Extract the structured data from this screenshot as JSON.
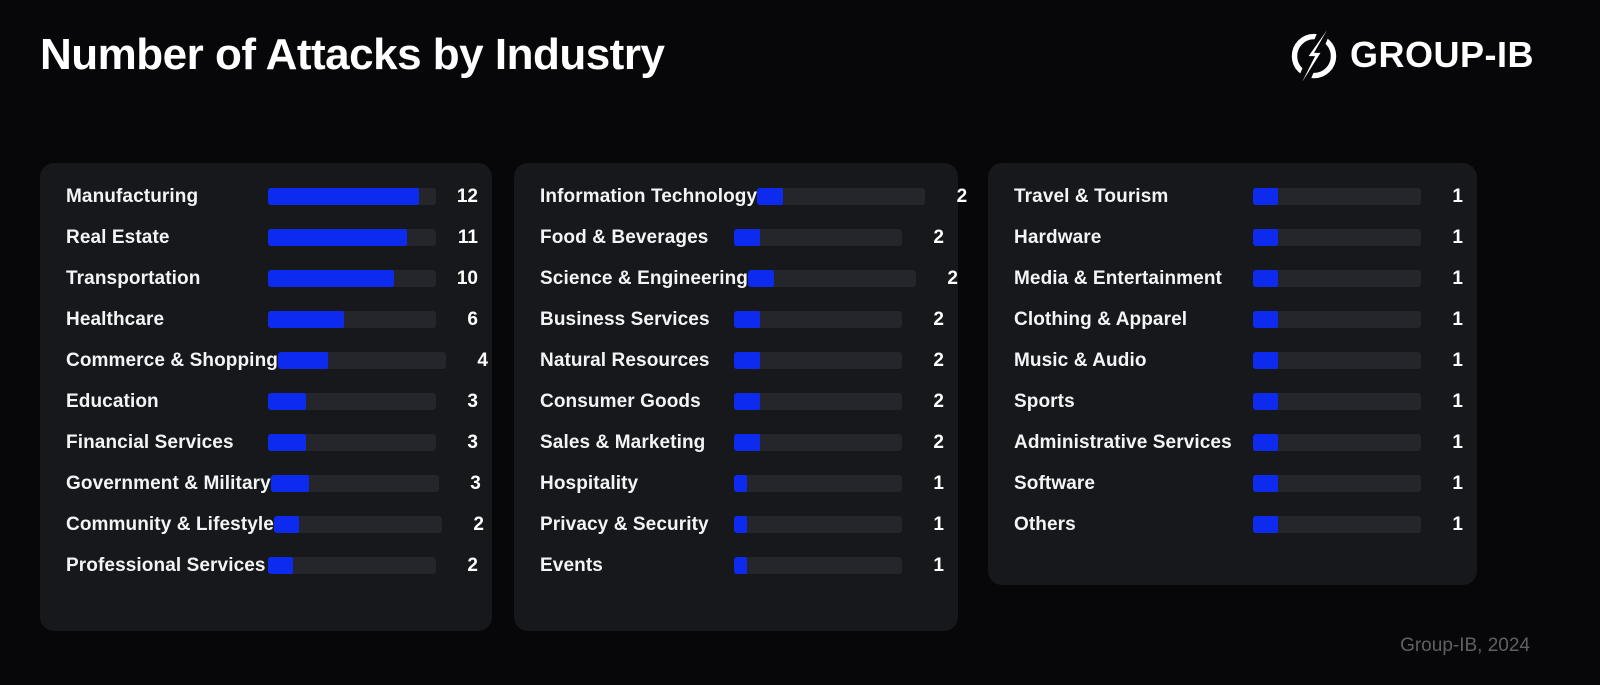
{
  "header": {
    "title": "Number of Attacks by Industry",
    "brand": "GROUP-IB"
  },
  "footer": {
    "credit": "Group-IB, 2024"
  },
  "colors": {
    "page_bg": "#070709",
    "panel_bg": "#17181C",
    "track": "#25262B",
    "accent": "#0C2BEF",
    "text": "#F3F4F5",
    "muted_text": "#5E6065"
  },
  "chart_data": {
    "type": "bar",
    "orientation": "horizontal",
    "title": "Number of Attacks by Industry",
    "xlabel": "",
    "ylabel": "",
    "legend": "none",
    "grid": false,
    "value_label_position": "right",
    "panels": [
      {
        "name": "panel-1",
        "unit_pct": 7.5,
        "items": [
          {
            "label": "Manufacturing",
            "value": 12
          },
          {
            "label": "Real Estate",
            "value": 11
          },
          {
            "label": "Transportation",
            "value": 10
          },
          {
            "label": "Healthcare",
            "value": 6
          },
          {
            "label": "Commerce & Shopping",
            "value": 4
          },
          {
            "label": "Education",
            "value": 3
          },
          {
            "label": "Financial Services",
            "value": 3
          },
          {
            "label": "Government & Military",
            "value": 3
          },
          {
            "label": "Community & Lifestyle",
            "value": 2
          },
          {
            "label": "Professional Services",
            "value": 2
          }
        ]
      },
      {
        "name": "panel-2",
        "unit_pct": 7.7,
        "items": [
          {
            "label": "Information Technology",
            "value": 2
          },
          {
            "label": "Food & Beverages",
            "value": 2
          },
          {
            "label": "Science & Engineering",
            "value": 2
          },
          {
            "label": "Business Services",
            "value": 2
          },
          {
            "label": "Natural Resources",
            "value": 2
          },
          {
            "label": "Consumer Goods",
            "value": 2
          },
          {
            "label": "Sales & Marketing",
            "value": 2
          },
          {
            "label": "Hospitality",
            "value": 1
          },
          {
            "label": "Privacy & Security",
            "value": 1
          },
          {
            "label": "Events",
            "value": 1
          }
        ]
      },
      {
        "name": "panel-3",
        "unit_pct": 14.6,
        "items": [
          {
            "label": "Travel & Tourism",
            "value": 1
          },
          {
            "label": "Hardware",
            "value": 1
          },
          {
            "label": "Media & Entertainment",
            "value": 1
          },
          {
            "label": "Clothing & Apparel",
            "value": 1
          },
          {
            "label": "Music & Audio",
            "value": 1
          },
          {
            "label": "Sports",
            "value": 1
          },
          {
            "label": "Administrative Services",
            "value": 1
          },
          {
            "label": "Software",
            "value": 1
          },
          {
            "label": "Others",
            "value": 1
          }
        ]
      }
    ]
  }
}
